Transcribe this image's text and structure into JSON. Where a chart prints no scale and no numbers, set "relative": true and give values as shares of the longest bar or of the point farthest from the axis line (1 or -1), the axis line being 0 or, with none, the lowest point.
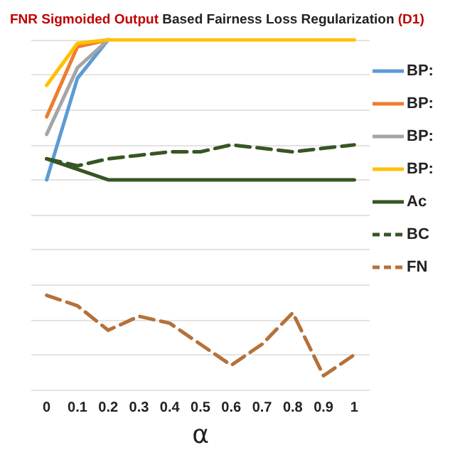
{
  "chart_data": {
    "type": "line",
    "title": "FNR Sigmoided Output Based Fairness Loss Regularization (D1)",
    "xlabel": "α",
    "relative": true,
    "grid": "y",
    "legend": "right",
    "marker": "none",
    "categories": [
      "0",
      "0.1",
      "0.2",
      "0.3",
      "0.4",
      "0.5",
      "0.6",
      "0.7",
      "0.8",
      "0.9",
      "1"
    ],
    "series": [
      {
        "name": "BP:",
        "color": "#5b9bd5",
        "line_style": "solid",
        "values": [
          0.6,
          0.89,
          1,
          null,
          null,
          null,
          null,
          null,
          null,
          null,
          null
        ]
      },
      {
        "name": "BP:",
        "color": "#ed7d31",
        "line_style": "solid",
        "values": [
          0.78,
          0.98,
          1,
          null,
          null,
          null,
          null,
          null,
          null,
          null,
          null
        ]
      },
      {
        "name": "BP:",
        "color": "#a5a5a5",
        "line_style": "solid",
        "values": [
          0.73,
          0.92,
          1,
          null,
          null,
          null,
          null,
          null,
          null,
          null,
          null
        ]
      },
      {
        "name": "BP:",
        "color": "#ffc000",
        "line_style": "solid",
        "values": [
          0.87,
          0.99,
          1,
          1,
          1,
          1,
          1,
          1,
          1,
          1,
          1
        ]
      },
      {
        "name": "Ac",
        "color": "#375623",
        "line_style": "solid",
        "values": [
          0.66,
          0.63,
          0.6,
          0.6,
          0.6,
          0.6,
          0.6,
          0.6,
          0.6,
          0.6,
          0.6
        ]
      },
      {
        "name": "BC",
        "color": "#375623",
        "line_style": "dashed",
        "values": [
          0.66,
          0.64,
          0.66,
          0.67,
          0.68,
          0.68,
          0.7,
          0.69,
          0.68,
          0.69,
          0.7
        ]
      },
      {
        "name": "FN",
        "color": "#b5713a",
        "line_style": "dashed",
        "values": [
          0.27,
          0.24,
          0.17,
          0.21,
          0.19,
          0.13,
          0.07,
          0.13,
          0.22,
          0.04,
          0.1
        ]
      }
    ]
  }
}
